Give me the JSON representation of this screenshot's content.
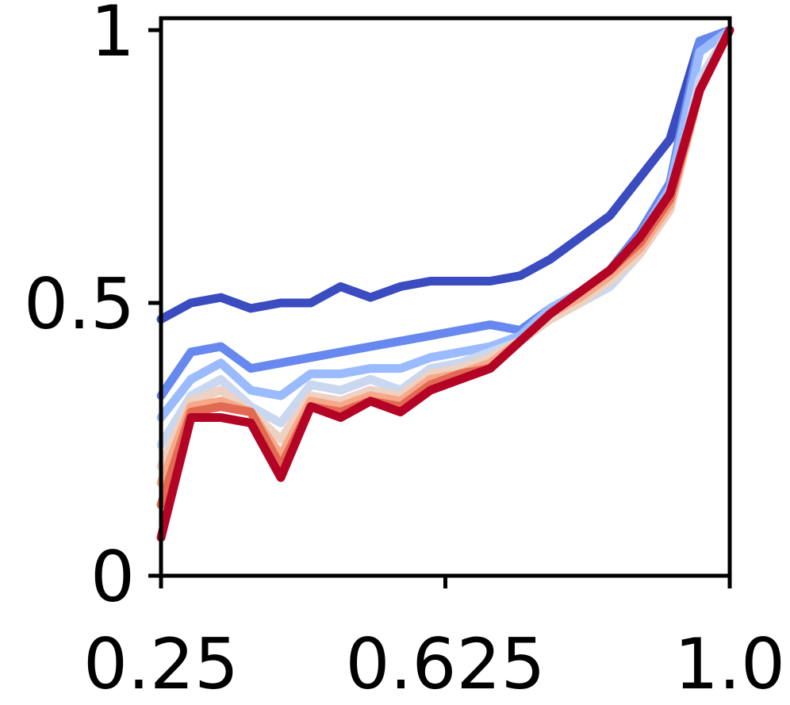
{
  "chart_data": {
    "type": "line",
    "title": "",
    "xlabel": "",
    "ylabel": "",
    "xlim": [
      0.25,
      1.0
    ],
    "ylim": [
      0,
      1
    ],
    "grid": false,
    "legend": "none",
    "x_ticks": [
      {
        "value": 0.25,
        "label": "0.25"
      },
      {
        "value": 0.625,
        "label": "0.625"
      },
      {
        "value": 1.0,
        "label": "1.0"
      }
    ],
    "y_ticks": [
      {
        "value": 0,
        "label": "0"
      },
      {
        "value": 0.5,
        "label": "0.5"
      },
      {
        "value": 1,
        "label": "1"
      }
    ],
    "x": [
      0.25,
      0.2895,
      0.3289,
      0.3684,
      0.4079,
      0.4474,
      0.4868,
      0.5263,
      0.5658,
      0.6053,
      0.6447,
      0.6842,
      0.7237,
      0.7632,
      0.8026,
      0.8421,
      0.8816,
      0.9211,
      0.9605,
      1.0
    ],
    "series": [
      {
        "color": "#3b4cc0",
        "values": [
          0.47,
          0.5,
          0.51,
          0.49,
          0.5,
          0.5,
          0.53,
          0.51,
          0.53,
          0.54,
          0.54,
          0.54,
          0.55,
          0.58,
          0.62,
          0.66,
          0.73,
          0.8,
          0.98,
          1.0
        ]
      },
      {
        "color": "#6788ee",
        "values": [
          0.33,
          0.41,
          0.42,
          0.38,
          0.39,
          0.4,
          0.41,
          0.42,
          0.43,
          0.44,
          0.45,
          0.46,
          0.45,
          0.49,
          0.52,
          0.56,
          0.63,
          0.72,
          0.98,
          1.0
        ]
      },
      {
        "color": "#9abbff",
        "values": [
          0.29,
          0.36,
          0.39,
          0.34,
          0.33,
          0.37,
          0.37,
          0.38,
          0.38,
          0.4,
          0.41,
          0.42,
          0.44,
          0.49,
          0.52,
          0.56,
          0.62,
          0.71,
          0.96,
          1.0
        ]
      },
      {
        "color": "#c9d7f0",
        "values": [
          0.24,
          0.33,
          0.36,
          0.31,
          0.28,
          0.35,
          0.34,
          0.36,
          0.34,
          0.38,
          0.39,
          0.41,
          0.43,
          0.47,
          0.5,
          0.53,
          0.59,
          0.68,
          0.91,
          1.0
        ]
      },
      {
        "color": "#edd1c2",
        "values": [
          0.2,
          0.32,
          0.34,
          0.3,
          0.25,
          0.33,
          0.32,
          0.34,
          0.33,
          0.37,
          0.38,
          0.4,
          0.43,
          0.47,
          0.5,
          0.54,
          0.59,
          0.67,
          0.89,
          1.0
        ]
      },
      {
        "color": "#f7a889",
        "values": [
          0.17,
          0.31,
          0.32,
          0.3,
          0.22,
          0.32,
          0.31,
          0.33,
          0.32,
          0.36,
          0.37,
          0.39,
          0.43,
          0.48,
          0.51,
          0.55,
          0.6,
          0.68,
          0.89,
          1.0
        ]
      },
      {
        "color": "#e26952",
        "values": [
          0.13,
          0.3,
          0.31,
          0.3,
          0.2,
          0.31,
          0.3,
          0.32,
          0.31,
          0.35,
          0.37,
          0.38,
          0.43,
          0.48,
          0.52,
          0.56,
          0.61,
          0.69,
          0.89,
          1.0
        ]
      },
      {
        "color": "#b40426",
        "values": [
          0.07,
          0.29,
          0.29,
          0.28,
          0.18,
          0.31,
          0.29,
          0.32,
          0.3,
          0.34,
          0.36,
          0.38,
          0.43,
          0.48,
          0.52,
          0.56,
          0.62,
          0.7,
          0.89,
          1.0
        ]
      }
    ]
  }
}
